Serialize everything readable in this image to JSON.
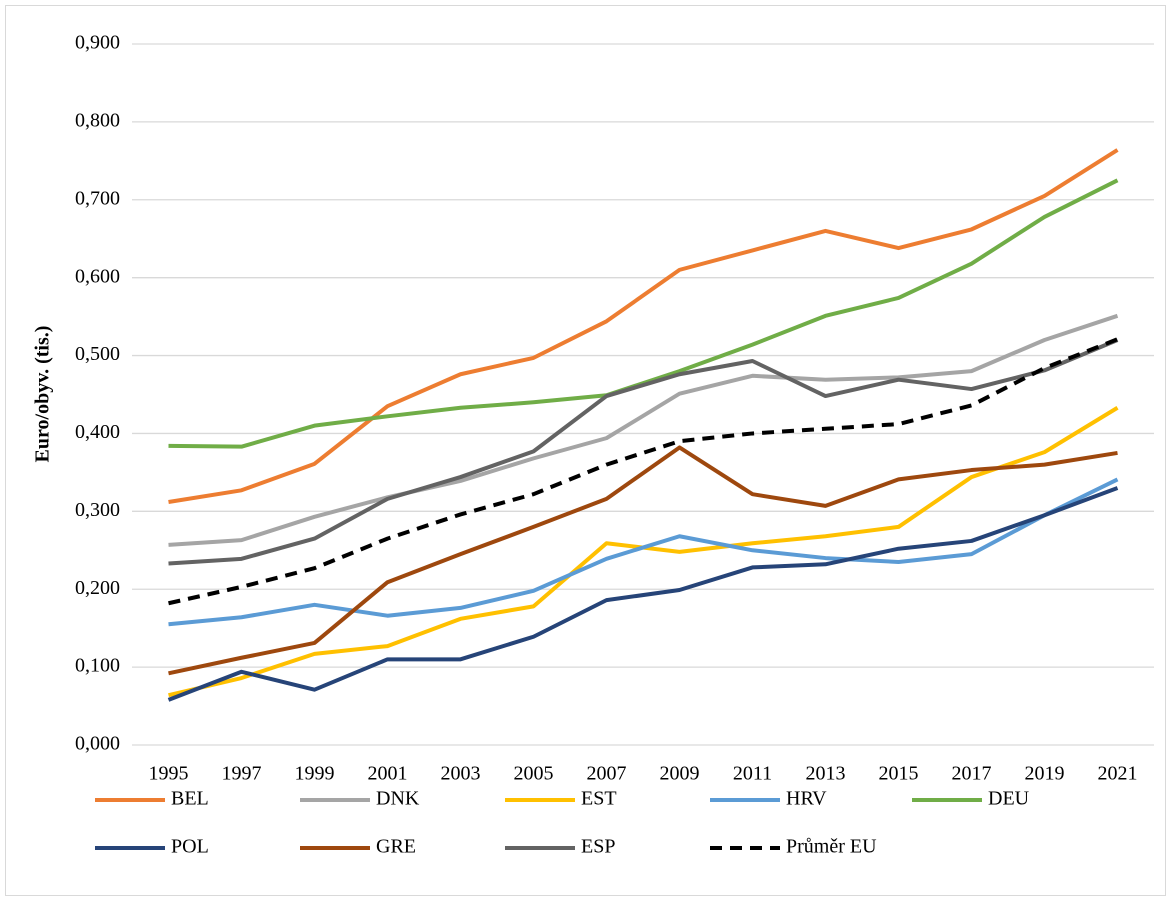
{
  "chart_data": {
    "type": "line",
    "y_label": "Euro/obyv. (tis.)",
    "categories": [
      "1995",
      "1997",
      "1999",
      "2001",
      "2003",
      "2005",
      "2007",
      "2009",
      "2011",
      "2013",
      "2015",
      "2017",
      "2019",
      "2021"
    ],
    "ylim": [
      0,
      0.9
    ],
    "yticks": [
      {
        "value": 0,
        "label": "0,000"
      },
      {
        "value": 0.1,
        "label": "0,100"
      },
      {
        "value": 0.2,
        "label": "0,200"
      },
      {
        "value": 0.3,
        "label": "0,300"
      },
      {
        "value": 0.4,
        "label": "0,400"
      },
      {
        "value": 0.5,
        "label": "0,500"
      },
      {
        "value": 0.6,
        "label": "0,600"
      },
      {
        "value": 0.7,
        "label": "0,700"
      },
      {
        "value": 0.8,
        "label": "0,800"
      },
      {
        "value": 0.9,
        "label": "0,900"
      }
    ],
    "grid": true,
    "legend": "bottom",
    "series": [
      {
        "name": "BEL",
        "color": "#ed7d31",
        "values": [
          0.312,
          0.327,
          0.361,
          0.435,
          0.476,
          0.497,
          0.544,
          0.61,
          0.635,
          0.66,
          0.638,
          0.662,
          0.705,
          0.764
        ]
      },
      {
        "name": "DNK",
        "color": "#a5a5a5",
        "values": [
          0.257,
          0.263,
          0.293,
          0.318,
          0.339,
          0.368,
          0.394,
          0.451,
          0.474,
          0.469,
          0.472,
          0.48,
          0.52,
          0.551
        ]
      },
      {
        "name": "EST",
        "color": "#ffc000",
        "values": [
          0.064,
          0.086,
          0.117,
          0.127,
          0.162,
          0.178,
          0.259,
          0.248,
          0.259,
          0.268,
          0.28,
          0.344,
          0.376,
          0.433
        ]
      },
      {
        "name": "HRV",
        "color": "#5b9bd5",
        "values": [
          0.155,
          0.164,
          0.18,
          0.166,
          0.176,
          0.198,
          0.239,
          0.268,
          0.25,
          0.24,
          0.235,
          0.245,
          0.295,
          0.341
        ]
      },
      {
        "name": "DEU",
        "color": "#70ad47",
        "values": [
          0.384,
          0.383,
          0.41,
          0.422,
          0.433,
          0.44,
          0.449,
          0.48,
          0.514,
          0.551,
          0.574,
          0.618,
          0.678,
          0.725
        ]
      },
      {
        "name": "POL",
        "color": "#264478",
        "values": [
          0.058,
          0.094,
          0.071,
          0.11,
          0.11,
          0.139,
          0.186,
          0.199,
          0.228,
          0.232,
          0.252,
          0.262,
          0.295,
          0.33
        ]
      },
      {
        "name": "GRE",
        "color": "#9e480e",
        "values": [
          0.092,
          0.112,
          0.131,
          0.209,
          0.245,
          0.28,
          0.316,
          0.382,
          0.322,
          0.307,
          0.341,
          0.353,
          0.36,
          0.375
        ]
      },
      {
        "name": "ESP",
        "color": "#636363",
        "values": [
          0.233,
          0.239,
          0.265,
          0.316,
          0.344,
          0.377,
          0.448,
          0.476,
          0.493,
          0.448,
          0.469,
          0.457,
          0.481,
          0.52
        ]
      },
      {
        "name": "Průměr EU",
        "color": "#000000",
        "dashed": true,
        "values": [
          0.182,
          0.203,
          0.227,
          0.265,
          0.296,
          0.322,
          0.36,
          0.39,
          0.4,
          0.406,
          0.412,
          0.436,
          0.484,
          0.521
        ]
      }
    ]
  }
}
